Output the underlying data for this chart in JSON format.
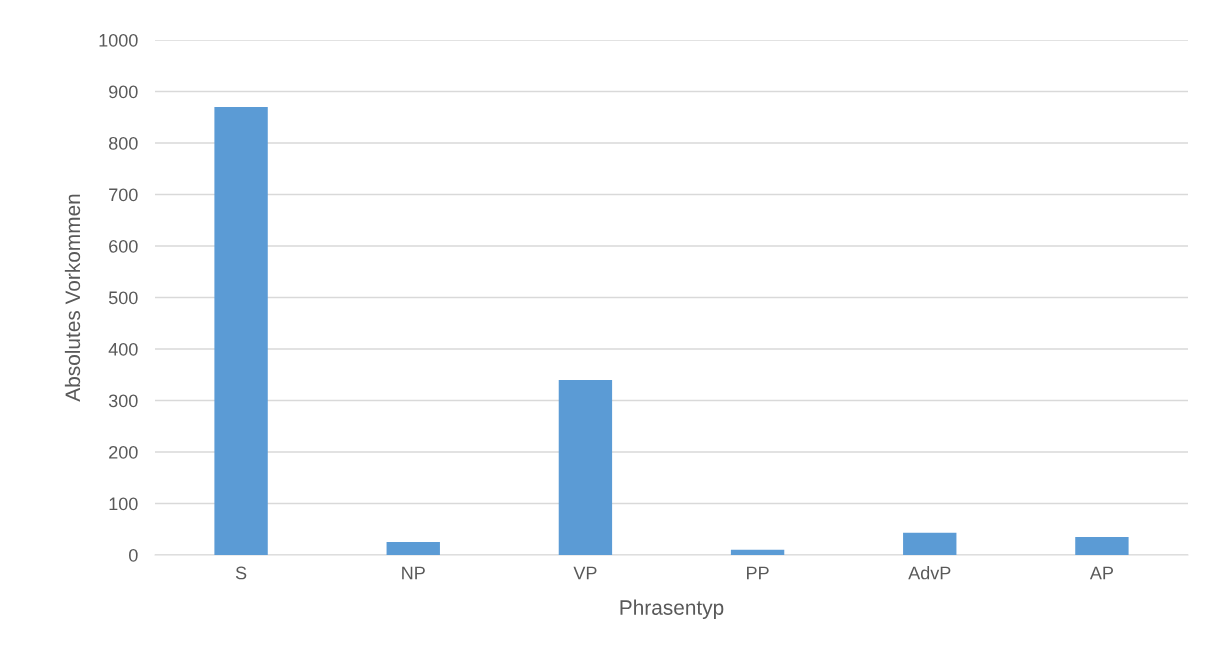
{
  "chart_data": {
    "type": "bar",
    "xlabel": "Phrasentyp",
    "ylabel": "Absolutes Vorkommen",
    "categories": [
      "S",
      "NP",
      "VP",
      "PP",
      "AdvP",
      "AP"
    ],
    "values": [
      870,
      25,
      340,
      10,
      43,
      35
    ],
    "color": "#5b9bd5",
    "ylim": [
      0,
      1000
    ],
    "yticks": [
      0,
      100,
      200,
      300,
      400,
      500,
      600,
      700,
      800,
      900,
      1000
    ],
    "grid": "y"
  }
}
